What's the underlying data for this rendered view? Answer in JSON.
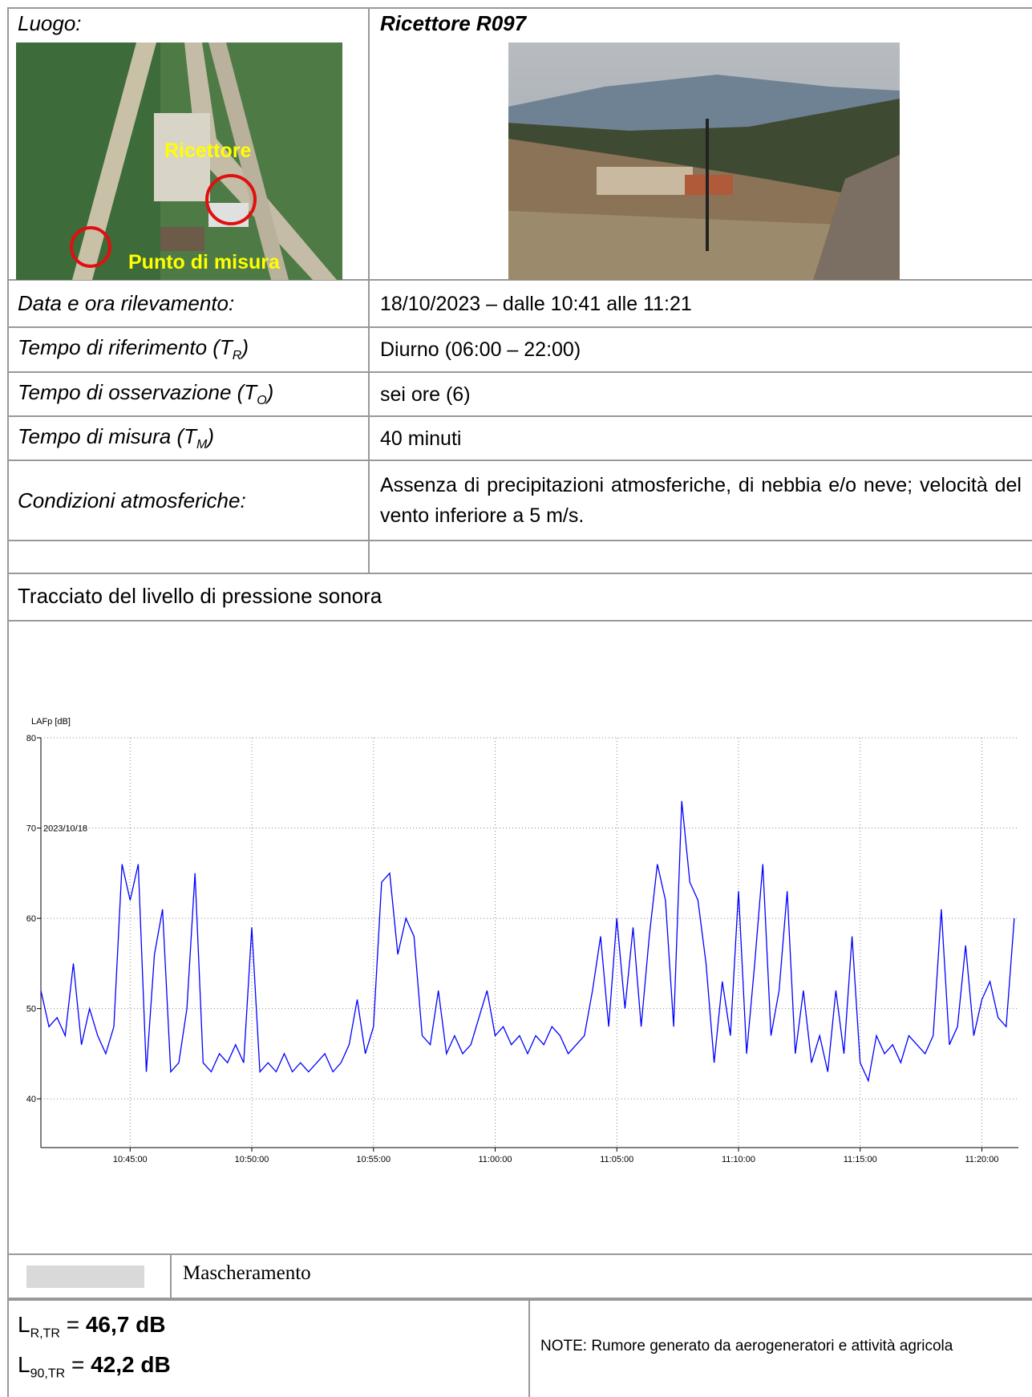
{
  "luogo_label": "Luogo:",
  "ricettore": "Ricettore R097",
  "map_labels": [
    "Ricettore",
    "Punto di misura"
  ],
  "rows": [
    {
      "label": {
        "text": "Data e ora rilevamento:"
      },
      "value": "18/10/2023 – dalle 10:41 alle 11:21"
    },
    {
      "label": {
        "text": "Tempo di riferimento (T",
        "sub": "R",
        "after": ")"
      },
      "value": "Diurno (06:00 – 22:00)"
    },
    {
      "label": {
        "text": "Tempo di osservazione (T",
        "sub": "O",
        "after": ")"
      },
      "value": "sei ore (6)"
    },
    {
      "label": {
        "text": "Tempo di misura (T",
        "sub": "M",
        "after": ")"
      },
      "value": "40 minuti"
    },
    {
      "label": {
        "text": "Condizioni atmosferiche:"
      },
      "value": "Assenza di precipitazioni atmosferiche, di nebbia e/o neve; velocità del vento inferiore a 5 m/s."
    }
  ],
  "section_title": "Tracciato del livello di pressione sonora",
  "chart_data": {
    "type": "line",
    "y_label": "LAFp [dB]",
    "annotation": "2023/10/18",
    "color": "#0000ff",
    "x": [
      "10:41:20",
      "10:41:40",
      "10:42:00",
      "10:42:20",
      "10:42:40",
      "10:43:00",
      "10:43:20",
      "10:43:40",
      "10:44:00",
      "10:44:20",
      "10:44:40",
      "10:45:00",
      "10:45:20",
      "10:45:40",
      "10:46:00",
      "10:46:20",
      "10:46:40",
      "10:47:00",
      "10:47:20",
      "10:47:40",
      "10:48:00",
      "10:48:20",
      "10:48:40",
      "10:49:00",
      "10:49:20",
      "10:49:40",
      "10:50:00",
      "10:50:20",
      "10:50:40",
      "10:51:00",
      "10:51:20",
      "10:51:40",
      "10:52:00",
      "10:52:20",
      "10:52:40",
      "10:53:00",
      "10:53:20",
      "10:53:40",
      "10:54:00",
      "10:54:20",
      "10:54:40",
      "10:55:00",
      "10:55:20",
      "10:55:40",
      "10:56:00",
      "10:56:20",
      "10:56:40",
      "10:57:00",
      "10:57:20",
      "10:57:40",
      "10:58:00",
      "10:58:20",
      "10:58:40",
      "10:59:00",
      "10:59:20",
      "10:59:40",
      "11:00:00",
      "11:00:20",
      "11:00:40",
      "11:01:00",
      "11:01:20",
      "11:01:40",
      "11:02:00",
      "11:02:20",
      "11:02:40",
      "11:03:00",
      "11:03:20",
      "11:03:40",
      "11:04:00",
      "11:04:20",
      "11:04:40",
      "11:05:00",
      "11:05:20",
      "11:05:40",
      "11:06:00",
      "11:06:20",
      "11:06:40",
      "11:07:00",
      "11:07:20",
      "11:07:40",
      "11:08:00",
      "11:08:20",
      "11:08:40",
      "11:09:00",
      "11:09:20",
      "11:09:40",
      "11:10:00",
      "11:10:20",
      "11:10:40",
      "11:11:00",
      "11:11:20",
      "11:11:40",
      "11:12:00",
      "11:12:20",
      "11:12:40",
      "11:13:00",
      "11:13:20",
      "11:13:40",
      "11:14:00",
      "11:14:20",
      "11:14:40",
      "11:15:00",
      "11:15:20",
      "11:15:40",
      "11:16:00",
      "11:16:20",
      "11:16:40",
      "11:17:00",
      "11:17:20",
      "11:17:40",
      "11:18:00",
      "11:18:20",
      "11:18:40",
      "11:19:00",
      "11:19:20",
      "11:19:40",
      "11:20:00",
      "11:20:20",
      "11:20:40",
      "11:21:00",
      "11:21:20"
    ],
    "values": [
      52,
      48,
      49,
      47,
      55,
      46,
      50,
      47,
      45,
      48,
      66,
      62,
      66,
      43,
      56,
      61,
      43,
      44,
      50,
      65,
      44,
      43,
      45,
      44,
      46,
      44,
      59,
      43,
      44,
      43,
      45,
      43,
      44,
      43,
      44,
      45,
      43,
      44,
      46,
      51,
      45,
      48,
      64,
      65,
      56,
      60,
      58,
      47,
      46,
      52,
      45,
      47,
      45,
      46,
      49,
      52,
      47,
      48,
      46,
      47,
      45,
      47,
      46,
      48,
      47,
      45,
      46,
      47,
      52,
      58,
      48,
      60,
      50,
      59,
      48,
      58,
      66,
      62,
      48,
      73,
      64,
      62,
      55,
      44,
      53,
      47,
      63,
      45,
      55,
      66,
      47,
      52,
      63,
      45,
      52,
      44,
      47,
      43,
      52,
      45,
      58,
      44,
      42,
      47,
      45,
      46,
      44,
      47,
      46,
      45,
      47,
      61,
      46,
      48,
      57,
      47,
      51,
      53,
      49,
      48,
      60
    ],
    "xlim": [
      "10:41:20",
      "11:21:30"
    ],
    "xticks": [
      "10:45:00",
      "10:50:00",
      "10:55:00",
      "11:00:00",
      "11:05:00",
      "11:10:00",
      "11:15:00",
      "11:20:00"
    ],
    "ylim": [
      34.6,
      80
    ],
    "yticks": [
      40,
      50,
      60,
      70,
      80
    ],
    "grid": true
  },
  "legend": "Mascheramento",
  "results": [
    {
      "symbol": "L",
      "sub": "R,TR",
      "sep": "=",
      "value": "46,7 dB"
    },
    {
      "symbol": "L",
      "sub": "90,TR",
      "sep": "=",
      "value": "42,2 dB"
    }
  ],
  "note": "NOTE: Rumore generato da aerogeneratori e attività agricola"
}
